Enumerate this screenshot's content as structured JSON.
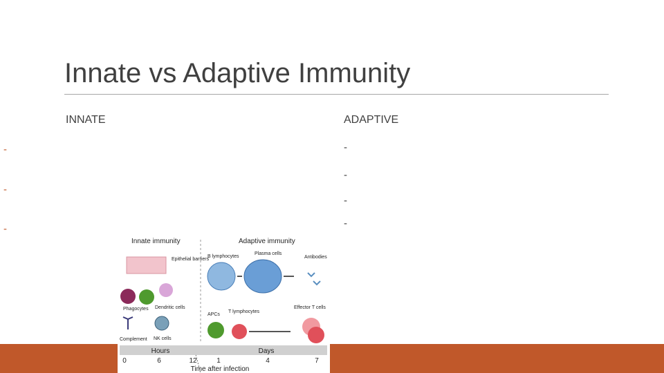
{
  "header": {
    "title": "Innate vs Adaptive Immunity"
  },
  "columns": [
    {
      "heading": "INNATE",
      "bullets": [
        "-",
        "-",
        "-"
      ]
    },
    {
      "heading": "ADAPTIVE",
      "bullets": [
        "-",
        "-",
        "-",
        "-"
      ]
    }
  ],
  "figure": {
    "innate_title": "Innate immunity",
    "adaptive_title": "Adaptive immunity",
    "cells": {
      "epithelial": "Epithelial barriers",
      "b_lymphocytes": "B lymphocytes",
      "plasma": "Plasma cells",
      "antibodies": "Antibodies",
      "phagocytes": "Phagocytes",
      "dendritic": "Dendritic cells",
      "apcs": "APCs",
      "t_lymphocytes": "T lymphocytes",
      "effector": "Effector T cells",
      "complement": "Complement",
      "nk": "NK cells"
    },
    "timeline": {
      "hours": "Hours",
      "days": "Days",
      "ticks": [
        "0",
        "6",
        "12",
        "1",
        "4",
        "7"
      ],
      "axis_label": "Time after infection"
    }
  }
}
